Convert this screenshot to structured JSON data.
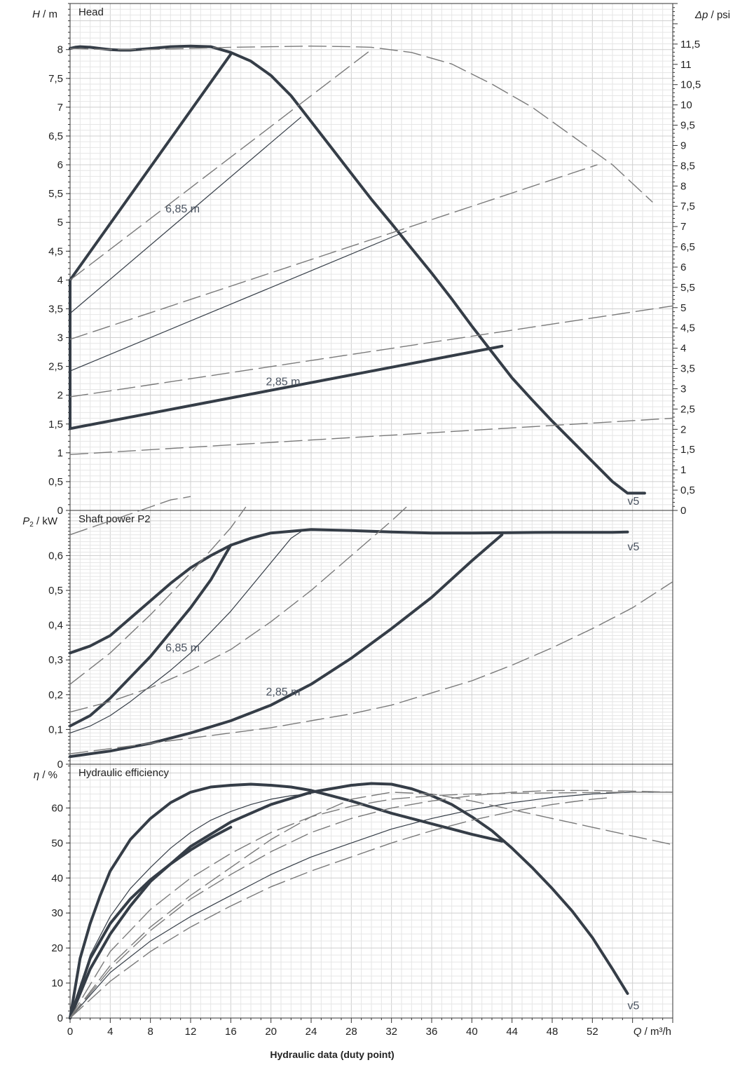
{
  "chart_data": [
    {
      "type": "line",
      "id": "head",
      "title": "Head",
      "ylabel_symbol": "H",
      "ylabel_unit": " / m",
      "right_ylabel_symbol": "Δp",
      "right_ylabel_unit": " / psi",
      "xlim": [
        0,
        60
      ],
      "ylim": [
        0,
        8.8
      ],
      "right_ylim": [
        0,
        12.5
      ],
      "yticks": [
        "0",
        "0,5",
        "1",
        "1,5",
        "2",
        "2,5",
        "3",
        "3,5",
        "4",
        "4,5",
        "5",
        "5,5",
        "6",
        "6,5",
        "7",
        "7,5",
        "8"
      ],
      "right_yticks": [
        "0",
        "0,5",
        "1",
        "1,5",
        "2",
        "2,5",
        "3",
        "3,5",
        "4",
        "4,5",
        "5",
        "5,5",
        "6",
        "6,5",
        "7",
        "7,5",
        "8",
        "8,5",
        "9",
        "9,5",
        "10",
        "10,5",
        "11",
        "11,5"
      ],
      "series": [
        {
          "style": "thick",
          "x": [
            0,
            0.5,
            1,
            2,
            3,
            4,
            5,
            6,
            8,
            10,
            12,
            14,
            16,
            18,
            20,
            22,
            24,
            26,
            28,
            30,
            32,
            34,
            36,
            38,
            40,
            42,
            44,
            46,
            48,
            50,
            52,
            54,
            55.5,
            57.2
          ],
          "y": [
            8.02,
            8.04,
            8.05,
            8.04,
            8.02,
            8.0,
            7.99,
            7.99,
            8.02,
            8.05,
            8.06,
            8.05,
            7.95,
            7.8,
            7.55,
            7.2,
            6.75,
            6.3,
            5.85,
            5.4,
            4.98,
            4.55,
            4.12,
            3.67,
            3.2,
            2.75,
            2.3,
            1.92,
            1.55,
            1.2,
            0.85,
            0.5,
            0.3,
            0.3
          ]
        },
        {
          "style": "thick",
          "x": [
            0,
            0,
            16,
            16
          ],
          "y": [
            1.42,
            4.0,
            7.92,
            7.92
          ]
        },
        {
          "style": "thick",
          "x": [
            0,
            43
          ],
          "y": [
            1.42,
            2.85
          ]
        },
        {
          "style": "thin",
          "x": [
            0,
            0,
            23
          ],
          "y": [
            3.42,
            3.42,
            6.83
          ]
        },
        {
          "style": "thin",
          "x": [
            0,
            33.5
          ],
          "y": [
            2.42,
            4.85
          ]
        },
        {
          "style": "dash",
          "x": [
            0,
            4,
            8,
            12,
            16,
            20,
            24,
            28,
            30,
            34,
            38,
            42,
            46,
            50,
            54,
            58
          ],
          "y": [
            8.02,
            8.0,
            8.0,
            8.02,
            8.04,
            8.05,
            8.06,
            8.05,
            8.04,
            7.95,
            7.75,
            7.4,
            7.0,
            6.5,
            6.0,
            5.35
          ]
        },
        {
          "style": "dash",
          "x": [
            0,
            30
          ],
          "y": [
            4.0,
            8.0
          ]
        },
        {
          "style": "dash",
          "x": [
            0,
            52.5
          ],
          "y": [
            2.97,
            6.0
          ]
        },
        {
          "style": "dash",
          "x": [
            0,
            60
          ],
          "y": [
            1.97,
            3.55
          ]
        },
        {
          "style": "dash",
          "x": [
            0,
            60
          ],
          "y": [
            0.97,
            1.6
          ]
        }
      ],
      "annotations": [
        {
          "text": "6,85 m",
          "x": 9.5,
          "y": 5.17
        },
        {
          "text": "2,85 m",
          "x": 19.5,
          "y": 2.17
        },
        {
          "text": "v5",
          "x": 55.5,
          "y": 0.1
        }
      ]
    },
    {
      "type": "line",
      "id": "power",
      "title": "Shaft power P2",
      "ylabel_symbol": "P",
      "ylabel_sub": "2",
      "ylabel_unit": " / kW",
      "xlim": [
        0,
        60
      ],
      "ylim": [
        0,
        0.73
      ],
      "yticks": [
        "0",
        "0,1",
        "0,2",
        "0,3",
        "0,4",
        "0,5",
        "0,6"
      ],
      "series": [
        {
          "style": "thick",
          "x": [
            0,
            2,
            4,
            6,
            8,
            10,
            12,
            14,
            16,
            18,
            20,
            24,
            28,
            32,
            36,
            40,
            44,
            48,
            52,
            54,
            55.5
          ],
          "y": [
            0.32,
            0.34,
            0.37,
            0.42,
            0.47,
            0.52,
            0.565,
            0.6,
            0.63,
            0.65,
            0.665,
            0.675,
            0.672,
            0.668,
            0.665,
            0.665,
            0.666,
            0.667,
            0.667,
            0.667,
            0.668
          ]
        },
        {
          "style": "thick",
          "x": [
            0,
            2,
            4,
            6,
            8,
            10,
            12,
            14,
            16
          ],
          "y": [
            0.11,
            0.14,
            0.19,
            0.25,
            0.31,
            0.38,
            0.45,
            0.53,
            0.63
          ]
        },
        {
          "style": "thick",
          "x": [
            0,
            4,
            8,
            12,
            16,
            20,
            24,
            28,
            32,
            36,
            40,
            43
          ],
          "y": [
            0.022,
            0.038,
            0.06,
            0.09,
            0.125,
            0.17,
            0.23,
            0.305,
            0.39,
            0.48,
            0.585,
            0.66
          ]
        },
        {
          "style": "thin",
          "x": [
            0,
            2,
            4,
            6,
            8,
            10,
            12,
            14,
            16,
            18,
            20,
            22,
            23.3
          ],
          "y": [
            0.09,
            0.11,
            0.14,
            0.18,
            0.225,
            0.27,
            0.32,
            0.38,
            0.44,
            0.51,
            0.58,
            0.65,
            0.675
          ]
        },
        {
          "style": "dash",
          "x": [
            0,
            2,
            4,
            6,
            8,
            10,
            12
          ],
          "y": [
            0.66,
            0.68,
            0.7,
            0.72,
            0.74,
            0.76,
            0.77
          ]
        },
        {
          "style": "dash",
          "x": [
            0,
            4,
            8,
            12,
            16,
            20,
            24,
            28,
            32,
            36,
            40,
            44,
            48,
            52,
            56,
            60
          ],
          "y": [
            0.03,
            0.045,
            0.06,
            0.075,
            0.09,
            0.105,
            0.125,
            0.145,
            0.17,
            0.205,
            0.24,
            0.285,
            0.335,
            0.39,
            0.45,
            0.525
          ]
        },
        {
          "style": "dash",
          "x": [
            0,
            4,
            8,
            12,
            16,
            20,
            24,
            28,
            32,
            33.5
          ],
          "y": [
            0.15,
            0.18,
            0.22,
            0.27,
            0.33,
            0.41,
            0.5,
            0.6,
            0.7,
            0.74
          ]
        },
        {
          "style": "dash",
          "x": [
            0,
            4,
            8,
            12,
            16,
            17.5
          ],
          "y": [
            0.23,
            0.32,
            0.43,
            0.55,
            0.68,
            0.74
          ]
        }
      ],
      "annotations": [
        {
          "text": "6,85 m",
          "x": 9.5,
          "y": 0.325
        },
        {
          "text": "2,85 m",
          "x": 19.5,
          "y": 0.198
        },
        {
          "text": "v5",
          "x": 55.5,
          "y": 0.615
        }
      ]
    },
    {
      "type": "line",
      "id": "efficiency",
      "title": "Hydraulic efficiency",
      "ylabel_symbol": "η",
      "ylabel_unit": " / %",
      "xlabel_symbol": "Q",
      "xlabel_unit": " / m³/h",
      "xtitle": "Hydraulic data (duty point)",
      "xlim": [
        0,
        60
      ],
      "ylim": [
        0,
        72.5
      ],
      "xticks": [
        "0",
        "4",
        "8",
        "12",
        "16",
        "20",
        "24",
        "28",
        "32",
        "36",
        "40",
        "44",
        "48",
        "52"
      ],
      "yticks": [
        "0",
        "10",
        "20",
        "30",
        "40",
        "50",
        "60"
      ],
      "series": [
        {
          "style": "thick",
          "x": [
            0,
            1,
            2,
            3,
            4,
            6,
            8,
            10,
            12,
            14,
            16,
            18,
            20,
            22,
            24,
            28,
            32,
            36,
            40,
            43
          ],
          "y": [
            0,
            17,
            27,
            35,
            42,
            51,
            57,
            61.5,
            64.5,
            66,
            66.5,
            66.8,
            66.5,
            66,
            65,
            62,
            58.5,
            55.5,
            52.5,
            50.5
          ]
        },
        {
          "style": "thick",
          "x": [
            0,
            2,
            4,
            6,
            8,
            12,
            16,
            20,
            24,
            28,
            30,
            32,
            34,
            36,
            38,
            40,
            42,
            44,
            46,
            48,
            50,
            52,
            54,
            55.5
          ],
          "y": [
            0,
            14,
            24,
            32,
            39,
            49,
            56,
            61,
            64.5,
            66.5,
            67,
            66.8,
            65.5,
            63.5,
            61,
            57.5,
            53.5,
            48.5,
            43,
            37,
            30.5,
            23,
            14,
            7
          ]
        },
        {
          "style": "thick",
          "x": [
            0,
            2,
            4,
            6,
            8,
            10,
            12,
            14,
            16
          ],
          "y": [
            0,
            17,
            27,
            34,
            39.5,
            44,
            48,
            51.5,
            54.5
          ]
        },
        {
          "style": "thin",
          "x": [
            0,
            2,
            4,
            6,
            8,
            10,
            12,
            14,
            16,
            18,
            20,
            22,
            24
          ],
          "y": [
            0,
            18,
            29,
            37,
            43,
            48.5,
            53,
            56.5,
            59,
            61,
            62.5,
            63.5,
            64
          ]
        },
        {
          "style": "thin",
          "x": [
            0,
            4,
            8,
            12,
            16,
            20,
            24,
            28,
            32,
            36,
            40,
            44,
            48,
            52,
            56,
            60
          ],
          "y": [
            0,
            13,
            22,
            29,
            35,
            41,
            46,
            50,
            54,
            57,
            59.5,
            61.5,
            63,
            64,
            64.5,
            64.5
          ]
        },
        {
          "style": "dash",
          "x": [
            0,
            4,
            8,
            12,
            16,
            20,
            24,
            28,
            32,
            36,
            40,
            44,
            48,
            52,
            56,
            60
          ],
          "y": [
            0,
            19,
            31,
            40,
            47,
            53,
            57.5,
            60.5,
            62.5,
            63.5,
            64,
            64.2,
            64.3,
            64.4,
            64.5,
            64.5
          ]
        },
        {
          "style": "dash",
          "x": [
            0,
            4,
            8,
            12,
            16,
            20,
            24,
            28,
            32,
            36,
            40,
            44,
            48,
            52,
            56,
            60
          ],
          "y": [
            0,
            15,
            26,
            35,
            43,
            51,
            57.5,
            62.5,
            64.5,
            64,
            62,
            59.5,
            57,
            54.5,
            52,
            49.5
          ]
        },
        {
          "style": "dash",
          "x": [
            0,
            4,
            8,
            12,
            16,
            20,
            24,
            28,
            32,
            36,
            40,
            44,
            48,
            52,
            54
          ],
          "y": [
            0,
            10.5,
            19,
            26,
            32,
            37.5,
            42,
            46,
            50,
            53.5,
            56.5,
            59,
            61,
            62.5,
            63
          ]
        },
        {
          "style": "dash",
          "x": [
            0,
            4,
            8,
            12,
            16,
            20,
            24,
            28,
            32,
            36,
            40,
            44,
            48,
            52,
            56,
            60
          ],
          "y": [
            0,
            14,
            25,
            34,
            41,
            47.5,
            53,
            57,
            60,
            62,
            63.5,
            64.5,
            65,
            65,
            64.8,
            64.5
          ]
        }
      ],
      "annotations": [
        {
          "text": "v5",
          "x": 55.5,
          "y": 2.5
        }
      ]
    }
  ]
}
